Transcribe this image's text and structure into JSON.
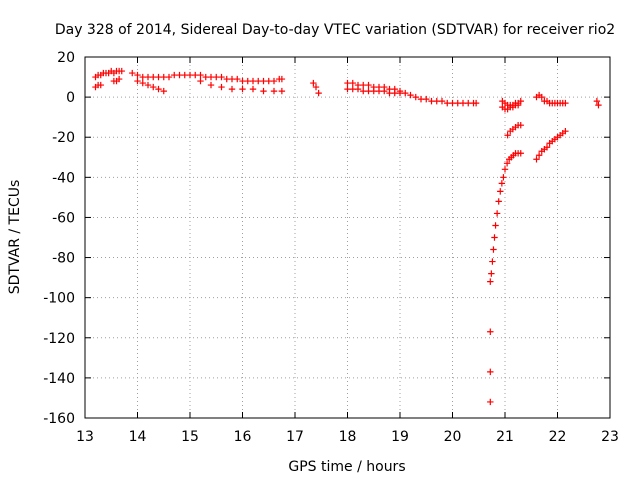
{
  "chart_data": {
    "type": "scatter",
    "title": "Day 328 of 2014, Sidereal Day-to-day VTEC variation (SDTVAR) for receiver rio2",
    "xlabel": "GPS time / hours",
    "ylabel": "SDTVAR / TECUs",
    "xlim": [
      13,
      23
    ],
    "ylim": [
      -160,
      20
    ],
    "x_ticks": [
      13,
      14,
      15,
      16,
      17,
      18,
      19,
      20,
      21,
      22,
      23
    ],
    "y_ticks": [
      20,
      0,
      -20,
      -40,
      -60,
      -80,
      -100,
      -120,
      -140,
      -160
    ],
    "grid": true,
    "marker": "plus",
    "color": "#ff0000",
    "series": [
      {
        "segments": [
          {
            "x": [
              13.2,
              13.25,
              13.3,
              13.35,
              13.4,
              13.45,
              13.5,
              13.55,
              13.6,
              13.65,
              13.7
            ],
            "y": [
              10,
              11,
              11,
              12,
              12,
              12,
              13,
              12,
              13,
              13,
              13
            ]
          },
          {
            "x": [
              13.2,
              13.25,
              13.3
            ],
            "y": [
              5,
              6,
              6
            ]
          },
          {
            "x": [
              13.55,
              13.6,
              13.65
            ],
            "y": [
              8,
              8,
              9
            ]
          },
          {
            "x": [
              13.9,
              14.0,
              14.1,
              14.2,
              14.3,
              14.4,
              14.5,
              14.6,
              14.7,
              14.8,
              14.9,
              15.0,
              15.1,
              15.2,
              15.3,
              15.4,
              15.5,
              15.6,
              15.7,
              15.8,
              15.9,
              16.0,
              16.1,
              16.2,
              16.3,
              16.4,
              16.5,
              16.6,
              16.7,
              16.75
            ],
            "y": [
              12,
              11,
              10,
              10,
              10,
              10,
              10,
              10,
              11,
              11,
              11,
              11,
              11,
              11,
              10,
              10,
              10,
              10,
              9,
              9,
              9,
              8,
              8,
              8,
              8,
              8,
              8,
              8,
              9,
              9
            ]
          },
          {
            "x": [
              14.0,
              14.1,
              14.2,
              14.3,
              14.4,
              14.5
            ],
            "y": [
              8,
              7,
              6,
              5,
              4,
              3
            ]
          },
          {
            "x": [
              15.2,
              15.4,
              15.6,
              15.8,
              16.0,
              16.2,
              16.4,
              16.6,
              16.75
            ],
            "y": [
              8,
              6,
              5,
              4,
              4,
              4,
              3,
              3,
              3
            ]
          },
          {
            "x": [
              17.35,
              17.4,
              17.45
            ],
            "y": [
              7,
              5,
              2
            ]
          },
          {
            "x": [
              18.0,
              18.1,
              18.2,
              18.3,
              18.4,
              18.5,
              18.6,
              18.7,
              18.8,
              18.9,
              19.0,
              19.1,
              19.2,
              19.3,
              19.4,
              19.5,
              19.6,
              19.7,
              19.8,
              19.9,
              20.0,
              20.1,
              20.2,
              20.3,
              20.4,
              20.45
            ],
            "y": [
              7,
              7,
              6,
              6,
              6,
              5,
              5,
              5,
              4,
              4,
              3,
              2,
              1,
              0,
              -1,
              -1,
              -2,
              -2,
              -2,
              -3,
              -3,
              -3,
              -3,
              -3,
              -3,
              -3
            ]
          },
          {
            "x": [
              18.0,
              18.1,
              18.2,
              18.3,
              18.4,
              18.5,
              18.6,
              18.7,
              18.8,
              18.9,
              19.0
            ],
            "y": [
              4,
              4,
              4,
              3,
              3,
              3,
              3,
              3,
              2,
              2,
              2
            ]
          },
          {
            "x": [
              20.95,
              21.0,
              21.05,
              21.1,
              21.15,
              21.2,
              21.25,
              21.3
            ],
            "y": [
              -2,
              -3,
              -4,
              -4,
              -4,
              -3,
              -3,
              -2
            ]
          },
          {
            "x": [
              20.95,
              21.0,
              21.05,
              21.1,
              21.15,
              21.2,
              21.25
            ],
            "y": [
              -5,
              -6,
              -6,
              -5,
              -5,
              -4,
              -4
            ]
          },
          {
            "x": [
              21.6,
              21.65,
              21.7
            ],
            "y": [
              0,
              1,
              0
            ]
          },
          {
            "x": [
              21.75,
              21.8,
              21.85,
              21.9,
              21.95,
              22.0,
              22.05,
              22.1,
              22.15
            ],
            "y": [
              -2,
              -2,
              -3,
              -3,
              -3,
              -3,
              -3,
              -3,
              -3
            ]
          },
          {
            "x": [
              22.75,
              22.78
            ],
            "y": [
              -2,
              -4
            ]
          }
        ]
      },
      {
        "segments": [
          {
            "x": [
              20.72,
              20.74,
              20.76,
              20.78,
              20.8,
              20.82,
              20.85,
              20.88,
              20.91,
              20.94,
              20.97,
              21.0,
              21.04,
              21.08,
              21.12,
              21.16,
              21.2,
              21.25,
              21.3
            ],
            "y": [
              -92,
              -88,
              -82,
              -76,
              -70,
              -64,
              -58,
              -52,
              -47,
              -43,
              -40,
              -36,
              -33,
              -31,
              -30,
              -29,
              -28,
              -28,
              -28
            ]
          },
          {
            "x": [
              21.05,
              21.1,
              21.15,
              21.2,
              21.25,
              21.3
            ],
            "y": [
              -19,
              -17,
              -16,
              -15,
              -14,
              -14
            ]
          },
          {
            "x": [
              21.6,
              21.65,
              21.7,
              21.75,
              21.8,
              21.85,
              21.9,
              21.95,
              22.0,
              22.05,
              22.1,
              22.15
            ],
            "y": [
              -31,
              -29,
              -27,
              -26,
              -25,
              -23,
              -22,
              -21,
              -20,
              -19,
              -18,
              -17
            ]
          },
          {
            "x": [
              20.72,
              20.72,
              20.72
            ],
            "y": [
              -117,
              -137,
              -152
            ]
          }
        ]
      }
    ]
  }
}
